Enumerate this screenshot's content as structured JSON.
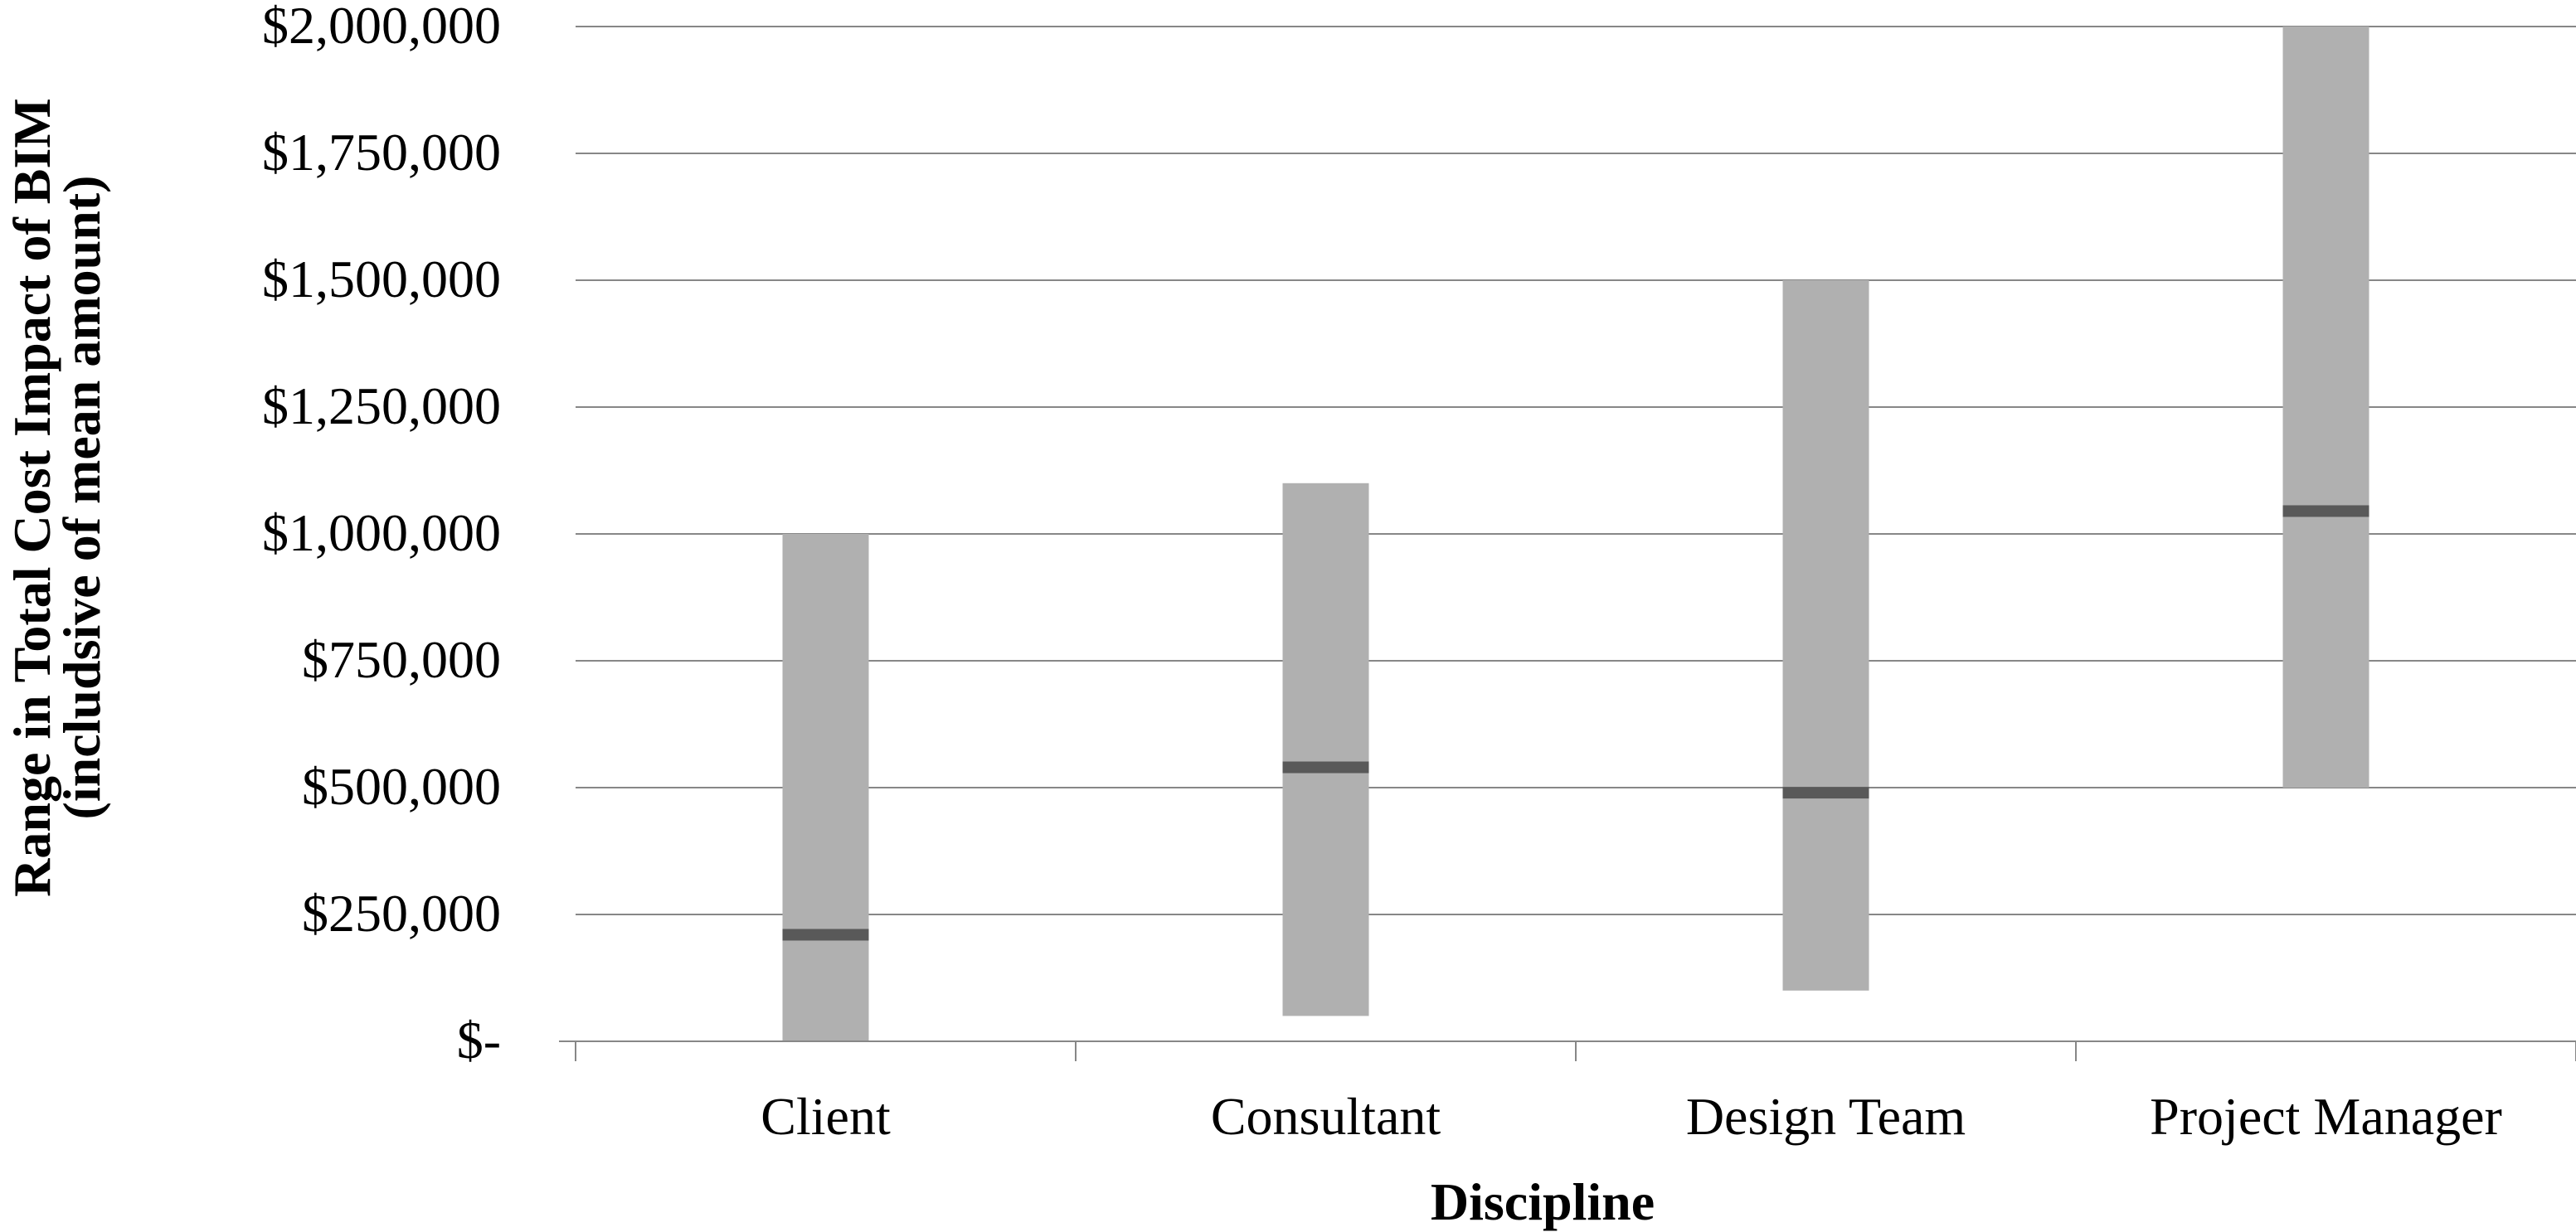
{
  "chart_data": {
    "type": "range-bar",
    "categories": [
      "Client",
      "Consultant",
      "Design Team",
      "Project Manager"
    ],
    "series": [
      {
        "low": 0,
        "high": 1000000,
        "mean": 210000
      },
      {
        "low": 50000,
        "high": 1100000,
        "mean": 540000
      },
      {
        "low": 100000,
        "high": 1500000,
        "mean": 490000
      },
      {
        "low": 500000,
        "high": 2000000,
        "mean": 1045000
      }
    ],
    "xlabel": "Discipline",
    "ylabel_line1": "Range in Total Cost Impact of BIM",
    "ylabel_line2": "(includsive of mean amount)",
    "ylim": [
      0,
      2000000
    ],
    "yticks": [
      0,
      250000,
      500000,
      750000,
      1000000,
      1250000,
      1500000,
      1750000,
      2000000
    ],
    "ytick_labels": [
      "$-",
      "$250,000",
      "$500,000",
      "$750,000",
      "$1,000,000",
      "$1,250,000",
      "$1,500,000",
      "$1,750,000",
      "$2,000,000"
    ],
    "grid": true,
    "legend": "none",
    "colors": {
      "range_bar": "#b0b0b0",
      "mean_marker": "#595959",
      "gridline": "#878787",
      "axis": "#878787"
    }
  }
}
